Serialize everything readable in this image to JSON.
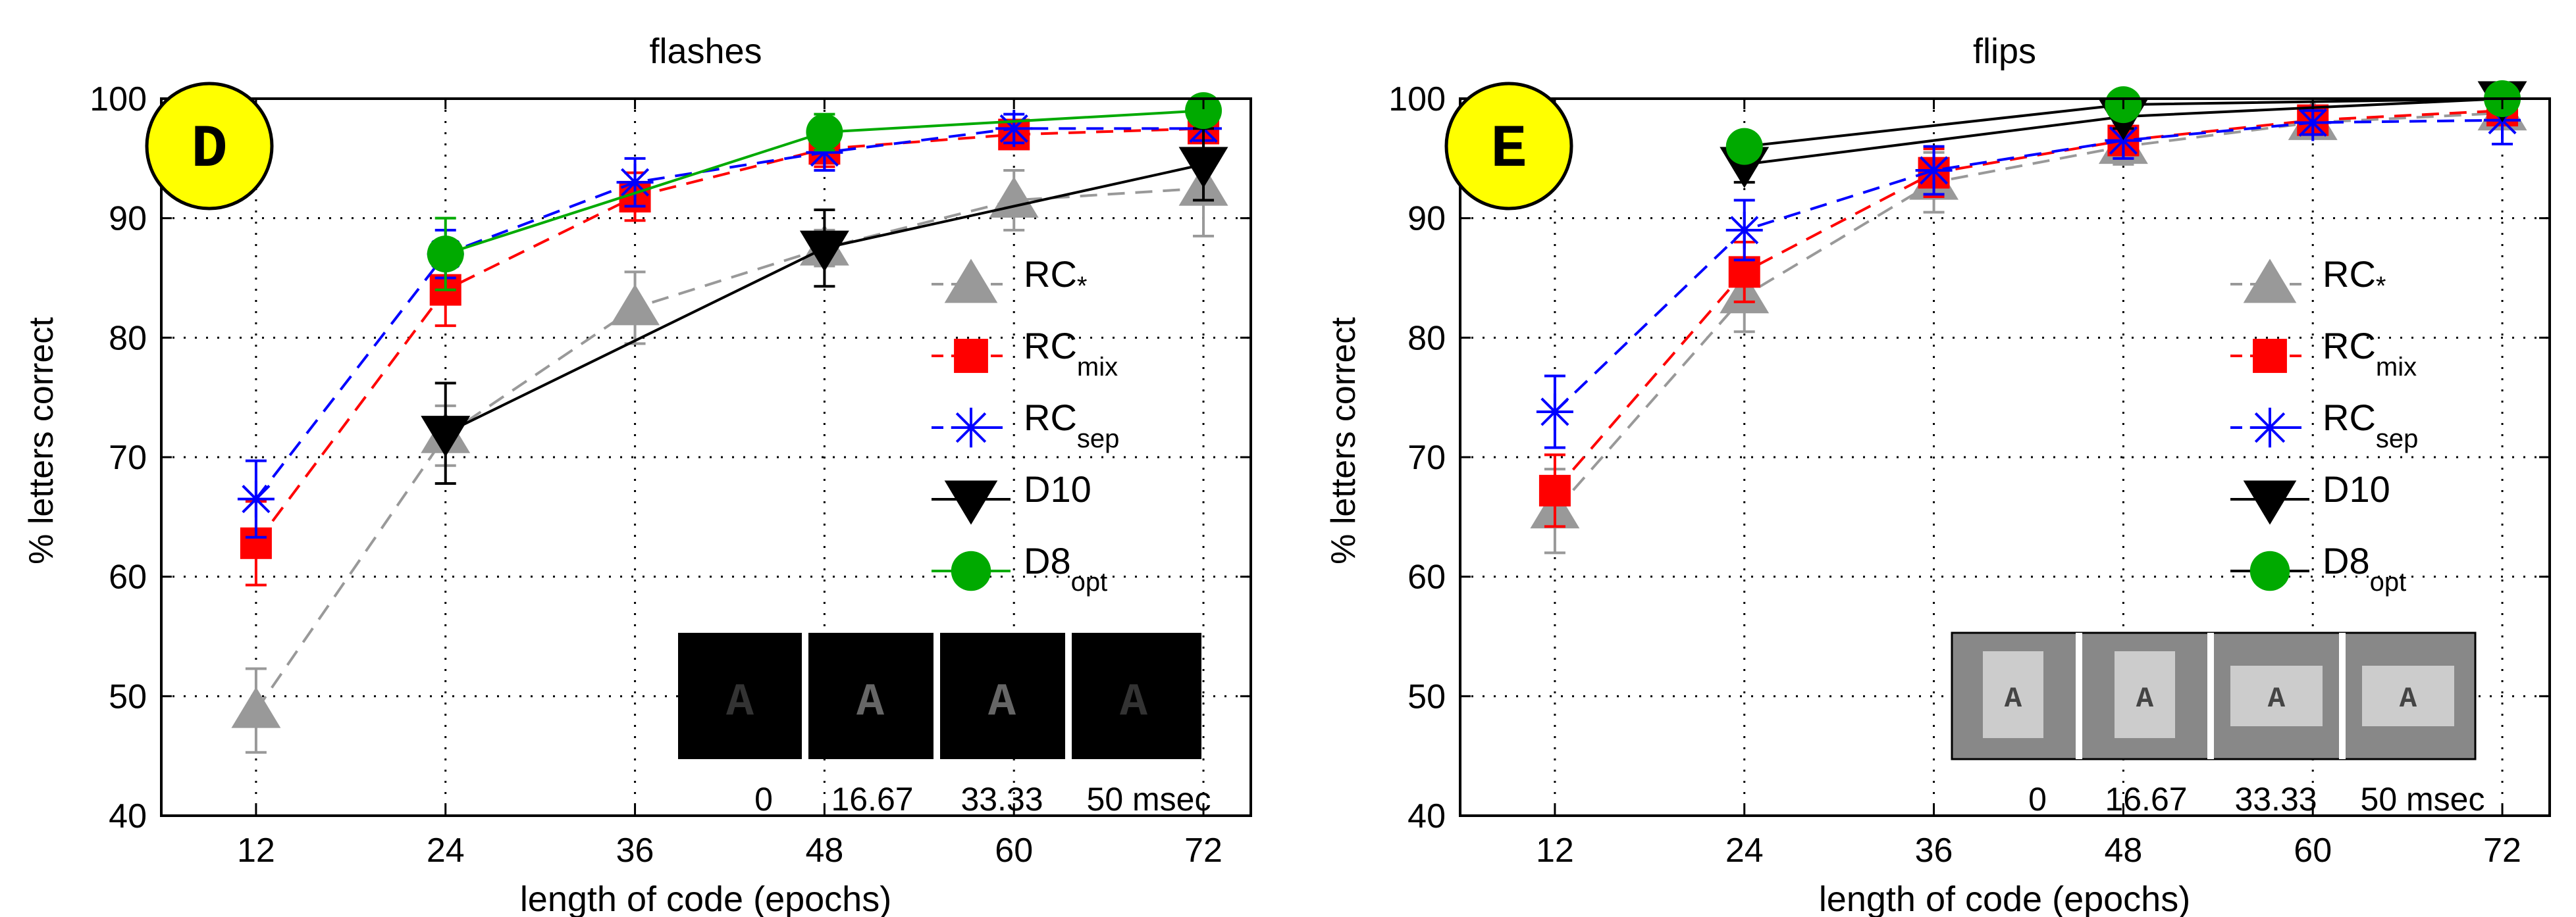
{
  "chart_data": [
    {
      "type": "line",
      "title": "flashes",
      "panel_label": "D",
      "xlabel": "length of code (epochs)",
      "ylabel": "% letters correct",
      "x": [
        12,
        24,
        36,
        48,
        60,
        72
      ],
      "x_ticks": [
        "12",
        "24",
        "36",
        "48",
        "60",
        "72"
      ],
      "y_ticks": [
        "40",
        "50",
        "60",
        "70",
        "80",
        "90",
        "100"
      ],
      "xlim": [
        6,
        75
      ],
      "ylim": [
        40,
        100
      ],
      "grid": true,
      "legend_position": "right",
      "series": [
        {
          "name_main": "RC",
          "name_sub": "*",
          "sub_raised": false,
          "color": "#999999",
          "dash": "dashed",
          "marker": "triangle-up",
          "values": [
            48.8,
            71.8,
            82.5,
            87.5,
            91.5,
            92.5
          ],
          "err": [
            3.5,
            2.5,
            3.0,
            1.5,
            2.5,
            4.0
          ]
        },
        {
          "name_main": "RC",
          "name_sub": "mix",
          "sub_raised": false,
          "color": "#ff0000",
          "dash": "dashed",
          "marker": "square",
          "values": [
            62.8,
            84.0,
            91.8,
            95.8,
            97.0,
            97.5
          ],
          "err": [
            3.5,
            3.0,
            2.0,
            1.5,
            1.2,
            1.0
          ]
        },
        {
          "name_main": "RC",
          "name_sub": "sep",
          "sub_raised": false,
          "color": "#0000ff",
          "dash": "dashed",
          "marker": "asterisk",
          "values": [
            66.5,
            87.0,
            93.0,
            95.5,
            97.5,
            97.5
          ],
          "err": [
            3.2,
            2.0,
            2.0,
            1.5,
            1.2,
            1.0
          ]
        },
        {
          "name_main": "D10",
          "name_sub": "",
          "sub_raised": false,
          "color": "#000000",
          "dash": "solid",
          "marker": "triangle-down",
          "values": [
            null,
            72.0,
            null,
            87.5,
            null,
            94.5
          ],
          "err": [
            0,
            4.2,
            0,
            3.2,
            0,
            3.0
          ]
        },
        {
          "name_main": "D8",
          "name_sub": "opt",
          "sub_raised": false,
          "color": "#00aa00",
          "line_color": "#00aa00",
          "dash": "solid",
          "marker": "circle",
          "values": [
            null,
            87.0,
            null,
            97.2,
            null,
            99.0
          ],
          "err": [
            0,
            3.0,
            0,
            1.5,
            0,
            0.5
          ]
        }
      ],
      "inset": {
        "background": "#000000",
        "style": "flashes",
        "glyph": "A",
        "glyph_colors": [
          "#333333",
          "#666666",
          "#666666",
          "#333333"
        ],
        "labels": [
          "0",
          "16.67",
          "33.33",
          "50 msec"
        ]
      }
    },
    {
      "type": "line",
      "title": "flips",
      "panel_label": "E",
      "xlabel": "length of code (epochs)",
      "ylabel": "% letters correct",
      "x": [
        12,
        24,
        36,
        48,
        60,
        72
      ],
      "x_ticks": [
        "12",
        "24",
        "36",
        "48",
        "60",
        "72"
      ],
      "y_ticks": [
        "40",
        "50",
        "60",
        "70",
        "80",
        "90",
        "100"
      ],
      "xlim": [
        6,
        75
      ],
      "ylim": [
        40,
        100
      ],
      "grid": true,
      "legend_position": "right",
      "series": [
        {
          "name_main": "RC",
          "name_sub": "*",
          "sub_raised": false,
          "color": "#999999",
          "dash": "dashed",
          "marker": "triangle-up",
          "values": [
            65.5,
            83.5,
            93.0,
            96.0,
            98.0,
            98.8
          ],
          "err": [
            3.5,
            3.0,
            2.5,
            1.5,
            1.0,
            1.0
          ]
        },
        {
          "name_main": "RC",
          "name_sub": "mix",
          "sub_raised": false,
          "color": "#ff0000",
          "dash": "dashed",
          "marker": "square",
          "values": [
            67.2,
            85.5,
            93.8,
            96.5,
            98.2,
            99.0
          ],
          "err": [
            3.0,
            2.5,
            2.0,
            1.5,
            1.0,
            0.8
          ]
        },
        {
          "name_main": "RC",
          "name_sub": "sep",
          "sub_raised": false,
          "color": "#0000ff",
          "dash": "dashed",
          "marker": "asterisk",
          "values": [
            73.8,
            89.0,
            94.0,
            96.5,
            98.0,
            98.2
          ],
          "err": [
            3.0,
            2.5,
            2.0,
            1.5,
            1.0,
            2.0
          ]
        },
        {
          "name_main": "D10",
          "name_sub": "",
          "sub_raised": false,
          "color": "#000000",
          "dash": "solid",
          "marker": "triangle-down",
          "values": [
            null,
            94.5,
            null,
            98.5,
            null,
            100.0
          ],
          "err": [
            0,
            1.5,
            0,
            1.0,
            0,
            0.5
          ]
        },
        {
          "name_main": "D8",
          "name_sub": "opt",
          "sub_raised": false,
          "color": "#00aa00",
          "line_color": "#000000",
          "dash": "solid",
          "marker": "circle",
          "values": [
            null,
            96.0,
            null,
            99.5,
            null,
            100.0
          ],
          "err": [
            0,
            1.0,
            0,
            0.5,
            0,
            0.3
          ]
        }
      ],
      "inset": {
        "background": "#888888",
        "style": "flips",
        "glyph": "A",
        "glyph_colors": [
          "#444444",
          "#444444",
          "#444444",
          "#444444"
        ],
        "labels": [
          "0",
          "16.67",
          "33.33",
          "50 msec"
        ]
      }
    }
  ],
  "colors": {
    "panel_badge": "#ffff00",
    "grid": "#000000",
    "inset_flip_card": "#cccccc"
  }
}
